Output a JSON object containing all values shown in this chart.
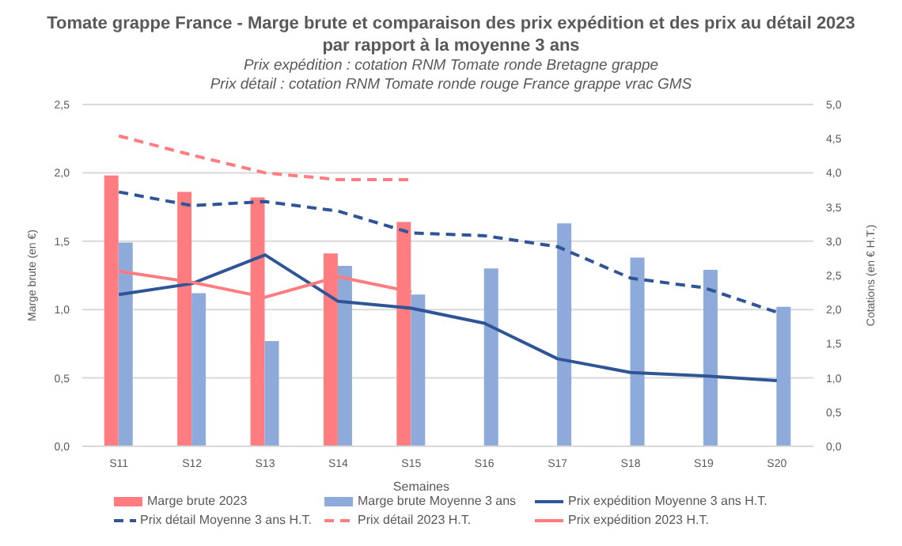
{
  "chart_data": {
    "type": "bar",
    "title": "Tomate grappe France - Marge brute et comparaison des prix expédition et des prix au détail 2023 par rapport à la moyenne 3 ans",
    "subtitle": "Prix expédition : cotation RNM Tomate ronde Bretagne grappe\nPrix détail : cotation RNM Tomate ronde rouge France grappe vrac GMS",
    "xlabel": "Semaines",
    "ylabel": "Marge brute (en €)",
    "y2label": "Cotations (en € H.T.)",
    "categories": [
      "S11",
      "S12",
      "S13",
      "S14",
      "S15",
      "S16",
      "S17",
      "S18",
      "S19",
      "S20"
    ],
    "series": [
      {
        "name": "Marge brute 2023",
        "color": "#ff7c80",
        "values": [
          1.98,
          1.86,
          1.82,
          1.41,
          1.64,
          null,
          null,
          null,
          null,
          null
        ]
      },
      {
        "name": "Marge brute Moyenne 3 ans",
        "color": "#8eaadb",
        "values": [
          1.49,
          1.12,
          0.77,
          1.32,
          1.11,
          1.3,
          1.63,
          1.38,
          1.29,
          1.02
        ]
      },
      {
        "name": "Prix expédition Moyenne 3 ans H.T.",
        "type": "line",
        "axis": "y2",
        "line_style": "solid",
        "color": "#2f5597",
        "values": [
          2.22,
          2.38,
          2.8,
          2.12,
          2.02,
          1.8,
          1.28,
          1.08,
          1.03,
          0.96
        ]
      },
      {
        "name": "Prix détail Moyenne 3 ans H.T.",
        "type": "line",
        "axis": "y2",
        "line_style": "dashed",
        "color": "#2f5597",
        "values": [
          3.72,
          3.52,
          3.58,
          3.44,
          3.12,
          3.08,
          2.92,
          2.46,
          2.32,
          1.96
        ]
      },
      {
        "name": "Prix détail 2023 H.T.",
        "type": "line",
        "axis": "y2",
        "line_style": "dashed",
        "color": "#ff7c80",
        "values": [
          4.54,
          4.26,
          4.0,
          3.9,
          3.9,
          null,
          null,
          null,
          null,
          null
        ]
      },
      {
        "name": "Prix expédition 2023 H.T.",
        "type": "line",
        "axis": "y2",
        "line_style": "solid",
        "color": "#ff7c80",
        "values": [
          2.56,
          2.4,
          2.18,
          2.48,
          2.26,
          null,
          null,
          null,
          null,
          null
        ]
      }
    ],
    "ylim": [
      0,
      2.5
    ],
    "yticks": [
      {
        "value": 0,
        "label": "0,0"
      },
      {
        "value": 0.5,
        "label": "0,5"
      },
      {
        "value": 1,
        "label": "1,0"
      },
      {
        "value": 1.5,
        "label": "1,5"
      },
      {
        "value": 2,
        "label": "2,0"
      },
      {
        "value": 2.5,
        "label": "2,5"
      }
    ],
    "y2lim": [
      0,
      5
    ],
    "y2ticks": [
      {
        "value": 0,
        "label": "0,0"
      },
      {
        "value": 0.5,
        "label": "0,5"
      },
      {
        "value": 1,
        "label": "1,0"
      },
      {
        "value": 1.5,
        "label": "1,5"
      },
      {
        "value": 2,
        "label": "2,0"
      },
      {
        "value": 2.5,
        "label": "2,5"
      },
      {
        "value": 3,
        "label": "3,0"
      },
      {
        "value": 3.5,
        "label": "3,5"
      },
      {
        "value": 4,
        "label": "4,0"
      },
      {
        "value": 4.5,
        "label": "4,5"
      },
      {
        "value": 5,
        "label": "5,0"
      }
    ],
    "grid": "y",
    "legend": "bottom",
    "marker": "none"
  }
}
